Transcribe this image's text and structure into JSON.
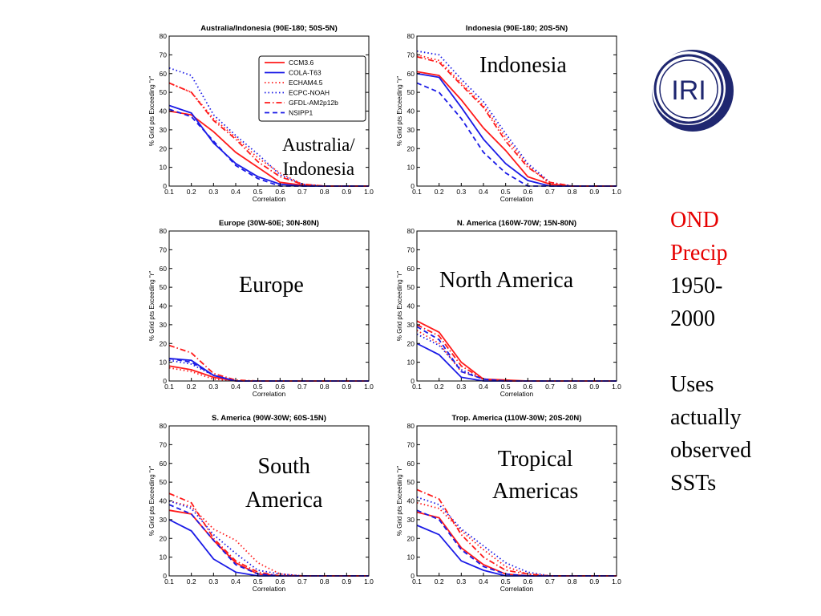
{
  "colors": {
    "red": "#ff1a1a",
    "blue": "#1a1ae6",
    "logo": "#1f2770"
  },
  "logo": {
    "text": "IRI"
  },
  "side_text": {
    "lines": [
      {
        "text": "OND",
        "color": "#e60000"
      },
      {
        "text": "Precip",
        "color": "#e60000"
      },
      {
        "text": "1950-",
        "color": "#000000"
      },
      {
        "text": "2000",
        "color": "#000000"
      },
      {
        "text": "",
        "color": "#000000"
      },
      {
        "text": "Uses",
        "color": "#000000"
      },
      {
        "text": "actually",
        "color": "#000000"
      },
      {
        "text": "observed",
        "color": "#000000"
      },
      {
        "text": "SSTs",
        "color": "#000000"
      }
    ]
  },
  "overlay_labels": [
    "Australia/\nIndonesia",
    "Indonesia",
    "Europe",
    "North America",
    "South\nAmerica",
    "Tropical\nAmericas"
  ],
  "legend": [
    {
      "name": "CCM3.6",
      "color": "red",
      "style": "solid"
    },
    {
      "name": "COLA-T63",
      "color": "blue",
      "style": "solid"
    },
    {
      "name": "ECHAM4.5",
      "color": "red",
      "style": "dotted"
    },
    {
      "name": "ECPC-NOAH",
      "color": "blue",
      "style": "dotted"
    },
    {
      "name": "GFDL-AM2p12b",
      "color": "red",
      "style": "dashdot"
    },
    {
      "name": "NSIPP1",
      "color": "blue",
      "style": "dashed"
    }
  ],
  "chart_data": [
    {
      "type": "line",
      "title": "Australia/Indonesia (90E-180; 50S-5N)",
      "xlabel": "Correlation",
      "ylabel": "% Grid pts Exceeding \"r\"",
      "xlim": [
        0.1,
        1.0
      ],
      "ylim": [
        0,
        80
      ],
      "x": [
        0.1,
        0.2,
        0.3,
        0.4,
        0.5,
        0.6,
        0.7,
        0.8,
        0.9,
        1.0
      ],
      "legend_position": "top-right",
      "series": [
        {
          "name": "CCM3.6",
          "values": [
            40,
            38,
            29,
            18,
            10,
            2,
            0.5,
            0,
            0,
            0
          ]
        },
        {
          "name": "COLA-T63",
          "values": [
            43,
            39,
            23,
            12,
            5,
            1,
            0,
            0,
            0,
            0
          ]
        },
        {
          "name": "ECHAM4.5",
          "values": [
            55,
            50,
            36,
            26,
            15,
            7,
            1,
            0,
            0,
            0
          ]
        },
        {
          "name": "ECPC-NOAH",
          "values": [
            63,
            59,
            38,
            27,
            17,
            6,
            1,
            0,
            0,
            0
          ]
        },
        {
          "name": "GFDL-AM2p12b",
          "values": [
            55,
            50,
            35,
            25,
            13,
            5,
            1,
            0,
            0,
            0
          ]
        },
        {
          "name": "NSIPP1",
          "values": [
            41,
            37,
            24,
            11,
            4,
            0,
            0,
            0,
            0,
            0
          ]
        }
      ]
    },
    {
      "type": "line",
      "title": "Indonesia (90E-180; 20S-5N)",
      "xlabel": "Correlation",
      "ylabel": "% Grid pts Exceeding \"r\"",
      "xlim": [
        0.1,
        1.0
      ],
      "ylim": [
        0,
        80
      ],
      "x": [
        0.1,
        0.2,
        0.3,
        0.4,
        0.5,
        0.6,
        0.7,
        0.8,
        0.9,
        1.0
      ],
      "series": [
        {
          "name": "CCM3.6",
          "values": [
            61,
            59,
            46,
            31,
            19,
            5,
            1,
            0,
            0,
            0
          ]
        },
        {
          "name": "COLA-T63",
          "values": [
            60,
            58,
            42,
            25,
            12,
            3,
            0,
            0,
            0,
            0
          ]
        },
        {
          "name": "ECHAM4.5",
          "values": [
            70,
            67,
            55,
            43,
            26,
            11,
            1,
            0,
            0,
            0
          ]
        },
        {
          "name": "ECPC-NOAH",
          "values": [
            72,
            70,
            57,
            45,
            28,
            12,
            2,
            0,
            0,
            0
          ]
        },
        {
          "name": "GFDL-AM2p12b",
          "values": [
            69,
            66,
            54,
            42,
            24,
            10,
            2,
            0,
            0,
            0
          ]
        },
        {
          "name": "NSIPP1",
          "values": [
            55,
            50,
            36,
            18,
            7,
            0,
            0,
            0,
            0,
            0
          ]
        }
      ]
    },
    {
      "type": "line",
      "title": "Europe (30W-60E; 30N-80N)",
      "xlabel": "Correlation",
      "ylabel": "% Grid pts Exceeding \"r\"",
      "xlim": [
        0.1,
        1.0
      ],
      "ylim": [
        0,
        80
      ],
      "x": [
        0.1,
        0.2,
        0.3,
        0.4,
        0.5,
        0.6,
        0.7,
        0.8,
        0.9,
        1.0
      ],
      "series": [
        {
          "name": "CCM3.6",
          "values": [
            8,
            6,
            2,
            0,
            0,
            0,
            0,
            0,
            0,
            0
          ]
        },
        {
          "name": "COLA-T63",
          "values": [
            12,
            11,
            3,
            0,
            0,
            0,
            0,
            0,
            0,
            0
          ]
        },
        {
          "name": "ECHAM4.5",
          "values": [
            7,
            5,
            1,
            0,
            0,
            0,
            0,
            0,
            0,
            0
          ]
        },
        {
          "name": "ECPC-NOAH",
          "values": [
            11,
            9,
            3,
            0,
            0,
            0,
            0,
            0,
            0,
            0
          ]
        },
        {
          "name": "GFDL-AM2p12b",
          "values": [
            19,
            15,
            4,
            0.5,
            0,
            0,
            0,
            0,
            0,
            0
          ]
        },
        {
          "name": "NSIPP1",
          "values": [
            12,
            10,
            3,
            0,
            0,
            0,
            0,
            0,
            0,
            0
          ]
        }
      ]
    },
    {
      "type": "line",
      "title": "N. America (160W-70W; 15N-80N)",
      "xlabel": "Correlation",
      "ylabel": "% Grid pts Exceeding \"r\"",
      "xlim": [
        0.1,
        1.0
      ],
      "ylim": [
        0,
        80
      ],
      "x": [
        0.1,
        0.2,
        0.3,
        0.4,
        0.5,
        0.6,
        0.7,
        0.8,
        0.9,
        1.0
      ],
      "series": [
        {
          "name": "CCM3.6",
          "values": [
            32,
            26,
            10,
            1,
            0.5,
            0,
            0,
            0,
            0,
            0
          ]
        },
        {
          "name": "COLA-T63",
          "values": [
            20,
            14,
            2,
            0,
            0,
            0,
            0,
            0,
            0,
            0
          ]
        },
        {
          "name": "ECHAM4.5",
          "values": [
            27,
            20,
            5,
            1,
            0,
            0,
            0,
            0,
            0,
            0
          ]
        },
        {
          "name": "ECPC-NOAH",
          "values": [
            25,
            19,
            6,
            1,
            0,
            0,
            0,
            0,
            0,
            0
          ]
        },
        {
          "name": "GFDL-AM2p12b",
          "values": [
            30,
            24,
            8,
            1,
            0,
            0,
            0,
            0,
            0,
            0
          ]
        },
        {
          "name": "NSIPP1",
          "values": [
            29,
            22,
            5,
            1,
            0,
            0,
            0,
            0,
            0,
            0
          ]
        }
      ]
    },
    {
      "type": "line",
      "title": "S. America (90W-30W; 60S-15N)",
      "xlabel": "Correlation",
      "ylabel": "% Grid pts Exceeding \"r\"",
      "xlim": [
        0.1,
        1.0
      ],
      "ylim": [
        0,
        80
      ],
      "x": [
        0.1,
        0.2,
        0.3,
        0.4,
        0.5,
        0.6,
        0.7,
        0.8,
        0.9,
        1.0
      ],
      "series": [
        {
          "name": "CCM3.6",
          "values": [
            35,
            33,
            19,
            7,
            1,
            0,
            0,
            0,
            0,
            0
          ]
        },
        {
          "name": "COLA-T63",
          "values": [
            30,
            24,
            9,
            2,
            0,
            0,
            0,
            0,
            0,
            0
          ]
        },
        {
          "name": "ECHAM4.5",
          "values": [
            40,
            37,
            25,
            19,
            7,
            1,
            0,
            0,
            0,
            0
          ]
        },
        {
          "name": "ECPC-NOAH",
          "values": [
            40,
            36,
            22,
            12,
            3,
            1,
            0,
            0,
            0,
            0
          ]
        },
        {
          "name": "GFDL-AM2p12b",
          "values": [
            44,
            39,
            20,
            8,
            2,
            0,
            0,
            0,
            0,
            0
          ]
        },
        {
          "name": "NSIPP1",
          "values": [
            38,
            33,
            19,
            6,
            1,
            0,
            0,
            0,
            0,
            0
          ]
        }
      ]
    },
    {
      "type": "line",
      "title": "Trop. America (110W-30W; 20S-20N)",
      "xlabel": "Correlation",
      "ylabel": "% Grid pts Exceeding \"r\"",
      "xlim": [
        0.1,
        1.0
      ],
      "ylim": [
        0,
        80
      ],
      "x": [
        0.1,
        0.2,
        0.3,
        0.4,
        0.5,
        0.6,
        0.7,
        0.8,
        0.9,
        1.0
      ],
      "series": [
        {
          "name": "CCM3.6",
          "values": [
            34,
            31,
            15,
            6,
            1,
            0,
            0,
            0,
            0,
            0
          ]
        },
        {
          "name": "COLA-T63",
          "values": [
            27,
            22,
            8,
            3,
            0,
            0,
            0,
            0,
            0,
            0
          ]
        },
        {
          "name": "ECHAM4.5",
          "values": [
            39,
            36,
            24,
            14,
            5,
            1,
            0,
            0,
            0,
            0
          ]
        },
        {
          "name": "ECPC-NOAH",
          "values": [
            42,
            38,
            25,
            16,
            7,
            2,
            0,
            0,
            0,
            0
          ]
        },
        {
          "name": "GFDL-AM2p12b",
          "values": [
            46,
            41,
            22,
            10,
            3,
            1,
            0,
            0,
            0,
            0
          ]
        },
        {
          "name": "NSIPP1",
          "values": [
            35,
            30,
            14,
            5,
            1,
            0,
            0,
            0,
            0,
            0
          ]
        }
      ]
    }
  ]
}
